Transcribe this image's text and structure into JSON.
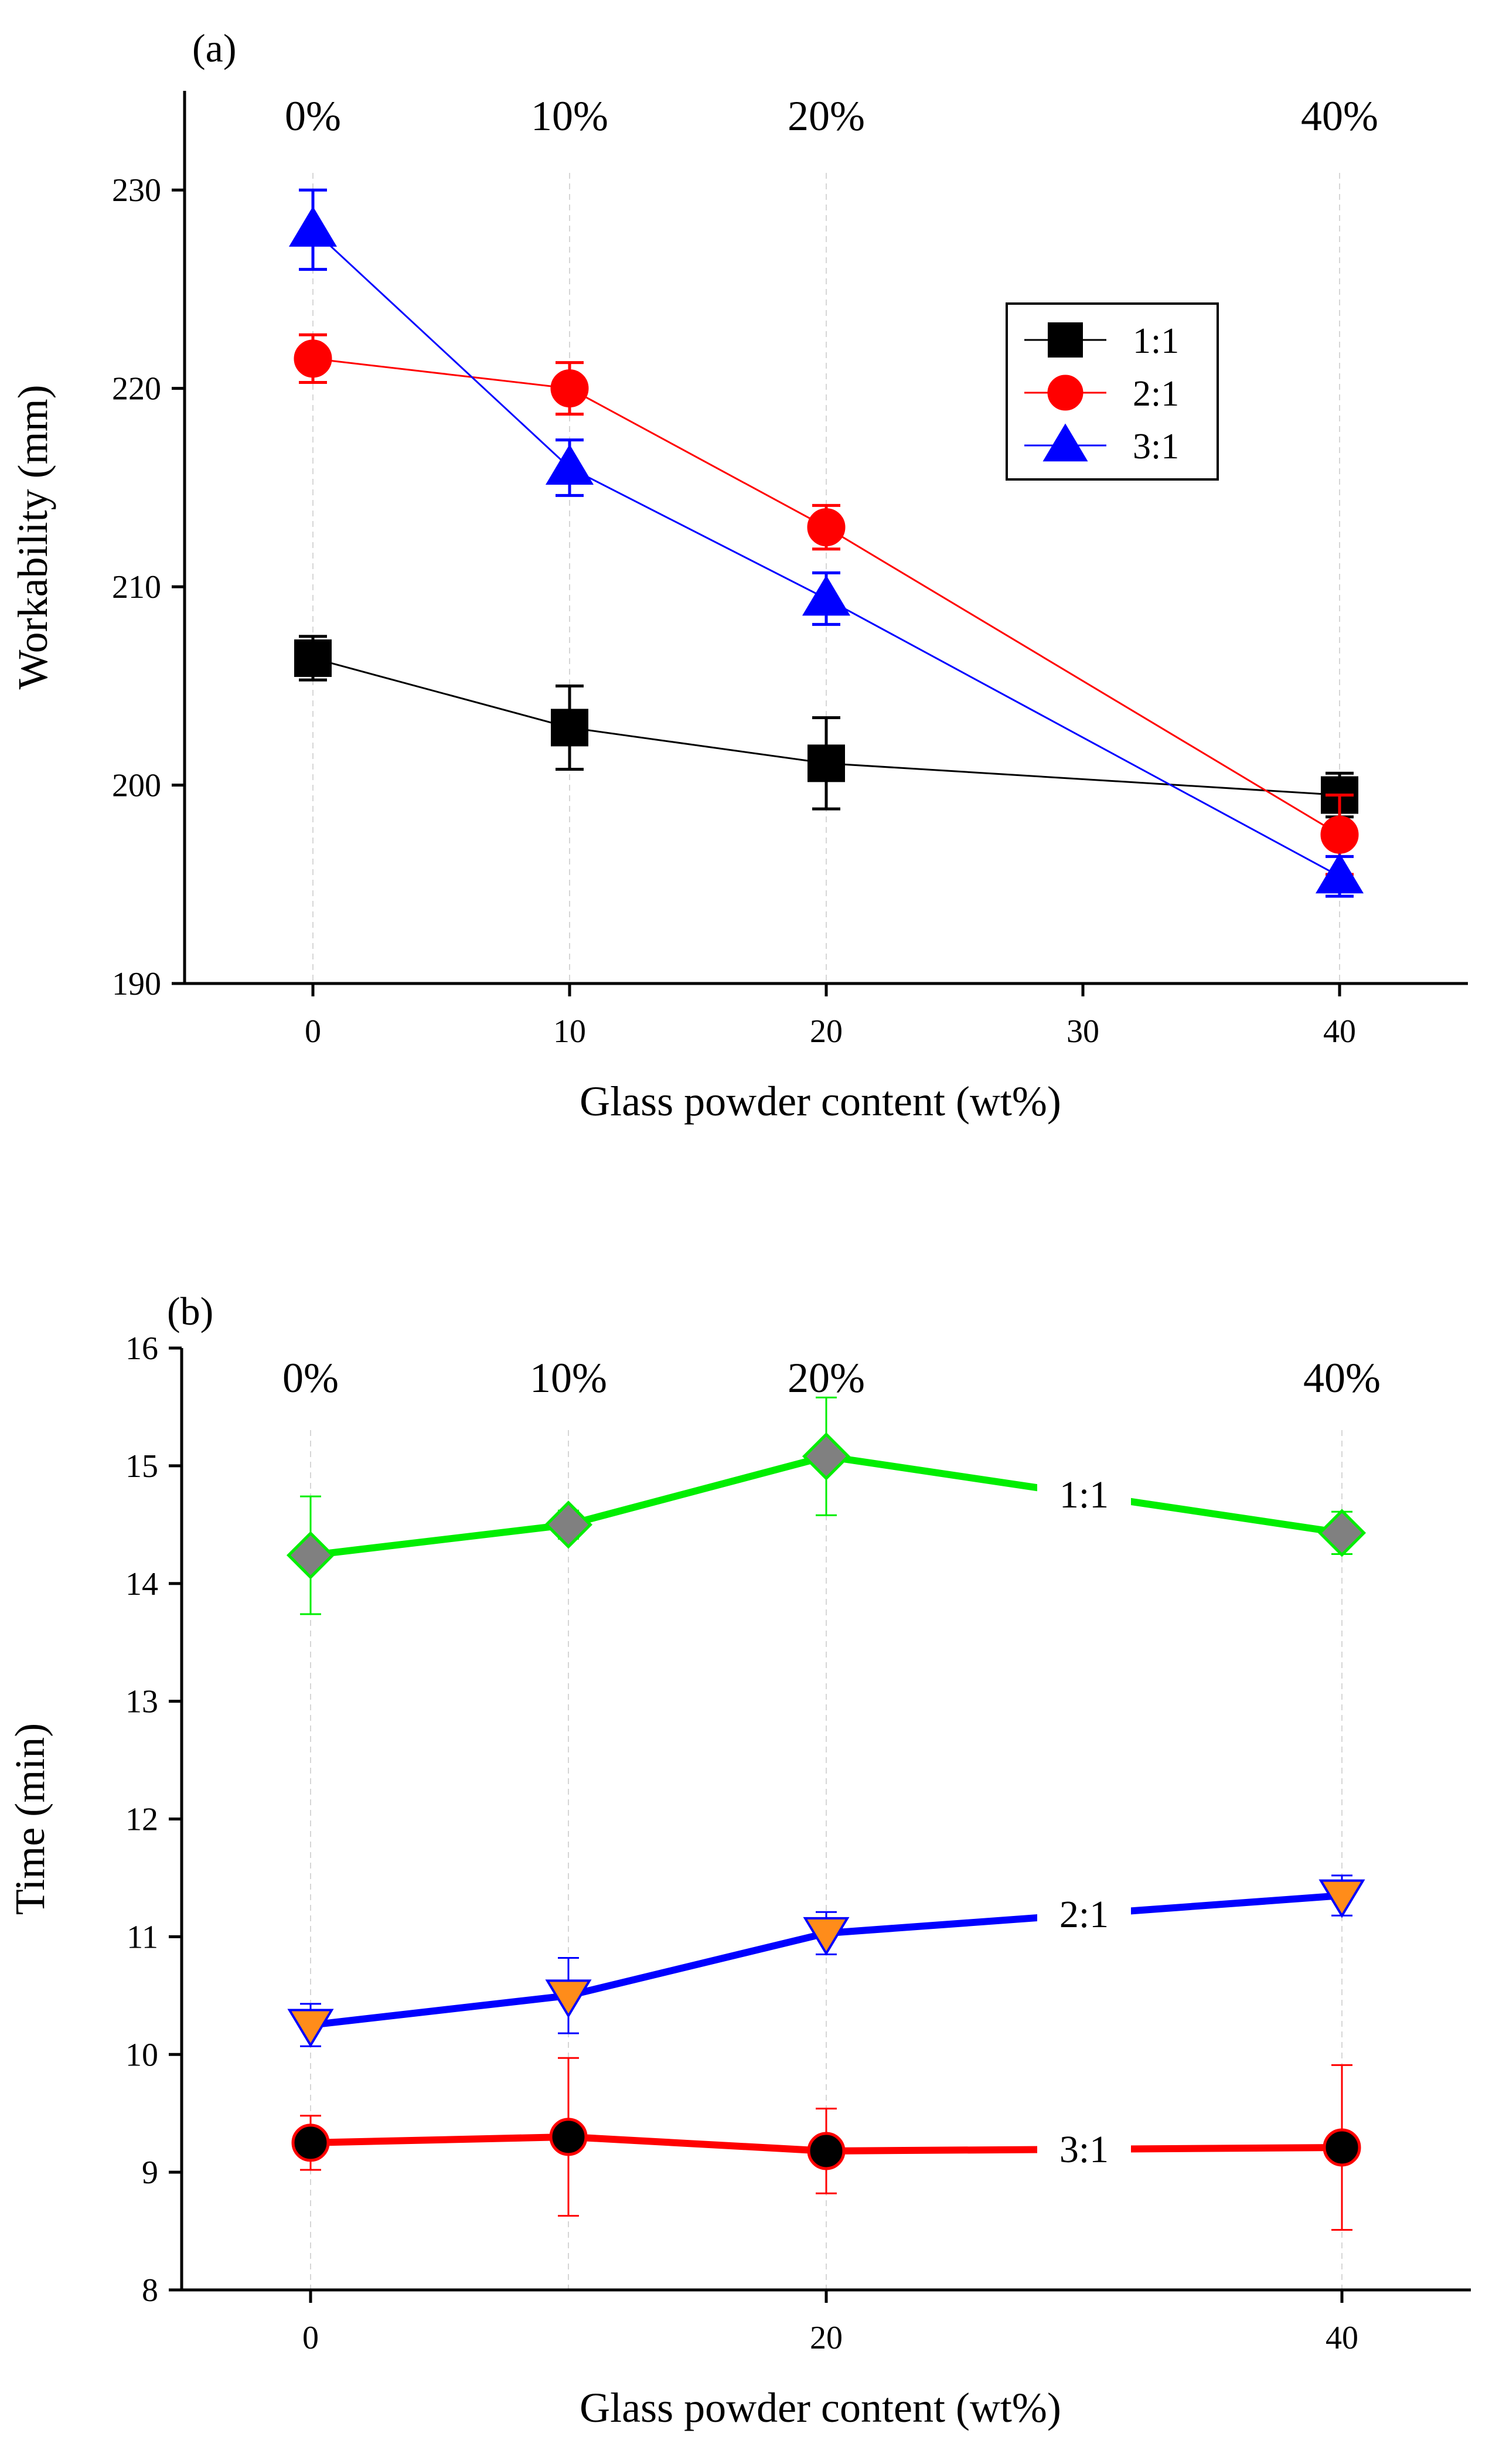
{
  "chart_data": [
    {
      "type": "line",
      "panel_label": "(a)",
      "xlabel": "Glass powder content (wt%)",
      "ylabel": "Workability (mm)",
      "xlim": [
        -5,
        45
      ],
      "ylim": [
        190,
        235
      ],
      "xticks": [
        0,
        10,
        20,
        30,
        40
      ],
      "yticks": [
        190,
        200,
        210,
        220,
        230
      ],
      "percent_labels": [
        {
          "x": 0,
          "text": "0%"
        },
        {
          "x": 10,
          "text": "10%"
        },
        {
          "x": 20,
          "text": "20%"
        },
        {
          "x": 40,
          "text": "40%"
        }
      ],
      "gridlines_x": [
        0,
        10,
        20,
        40
      ],
      "legend": "top-right",
      "series": [
        {
          "name": "1:1",
          "color": "#000000",
          "marker": "square",
          "x": [
            0,
            10,
            20,
            40
          ],
          "y": [
            206.4,
            202.9,
            201.1,
            199.5
          ],
          "err": [
            1.1,
            2.1,
            2.3,
            1.1
          ]
        },
        {
          "name": "2:1",
          "color": "#ff0000",
          "marker": "circle",
          "x": [
            0,
            10,
            20,
            40
          ],
          "y": [
            221.5,
            220.0,
            213.0,
            197.5
          ],
          "err": [
            1.2,
            1.3,
            1.1,
            2.0
          ]
        },
        {
          "name": "3:1",
          "color": "#0000ff",
          "marker": "triangle",
          "x": [
            0,
            10,
            20,
            40
          ],
          "y": [
            228.0,
            216.0,
            209.4,
            195.4
          ],
          "err": [
            2.0,
            1.4,
            1.3,
            1.0
          ]
        }
      ]
    },
    {
      "type": "line",
      "panel_label": "(b)",
      "xlabel": "Glass powder content (wt%)",
      "ylabel": "Time (min)",
      "xlim": [
        -5,
        45
      ],
      "ylim": [
        8,
        16
      ],
      "xticks": [
        0,
        20,
        40
      ],
      "yticks": [
        8,
        9,
        10,
        11,
        12,
        13,
        14,
        15,
        16
      ],
      "percent_labels": [
        {
          "x": 0,
          "text": "0%"
        },
        {
          "x": 10,
          "text": "10%"
        },
        {
          "x": 20,
          "text": "20%"
        },
        {
          "x": 40,
          "text": "40%"
        }
      ],
      "gridlines_x": [
        0,
        10,
        20,
        40
      ],
      "series": [
        {
          "name": "1:1",
          "color": "#00ee00",
          "marker_fill": "#808080",
          "marker": "diamond",
          "x": [
            0,
            10,
            20,
            40
          ],
          "y": [
            14.24,
            14.5,
            15.08,
            14.43
          ],
          "err": [
            0.5,
            0.12,
            0.5,
            0.18
          ],
          "label_at": 30
        },
        {
          "name": "2:1",
          "color": "#0000ff",
          "marker_fill": "#ff8c1a",
          "marker": "triangle-down",
          "x": [
            0,
            10,
            20,
            40
          ],
          "y": [
            10.25,
            10.5,
            11.03,
            11.35
          ],
          "err": [
            0.18,
            0.32,
            0.18,
            0.17
          ],
          "label_at": 30
        },
        {
          "name": "3:1",
          "color": "#ff0000",
          "marker_fill": "#000000",
          "marker": "circle",
          "x": [
            0,
            10,
            20,
            40
          ],
          "y": [
            9.25,
            9.3,
            9.18,
            9.21
          ],
          "err": [
            0.23,
            0.67,
            0.36,
            0.7
          ],
          "label_at": 30
        }
      ]
    }
  ]
}
